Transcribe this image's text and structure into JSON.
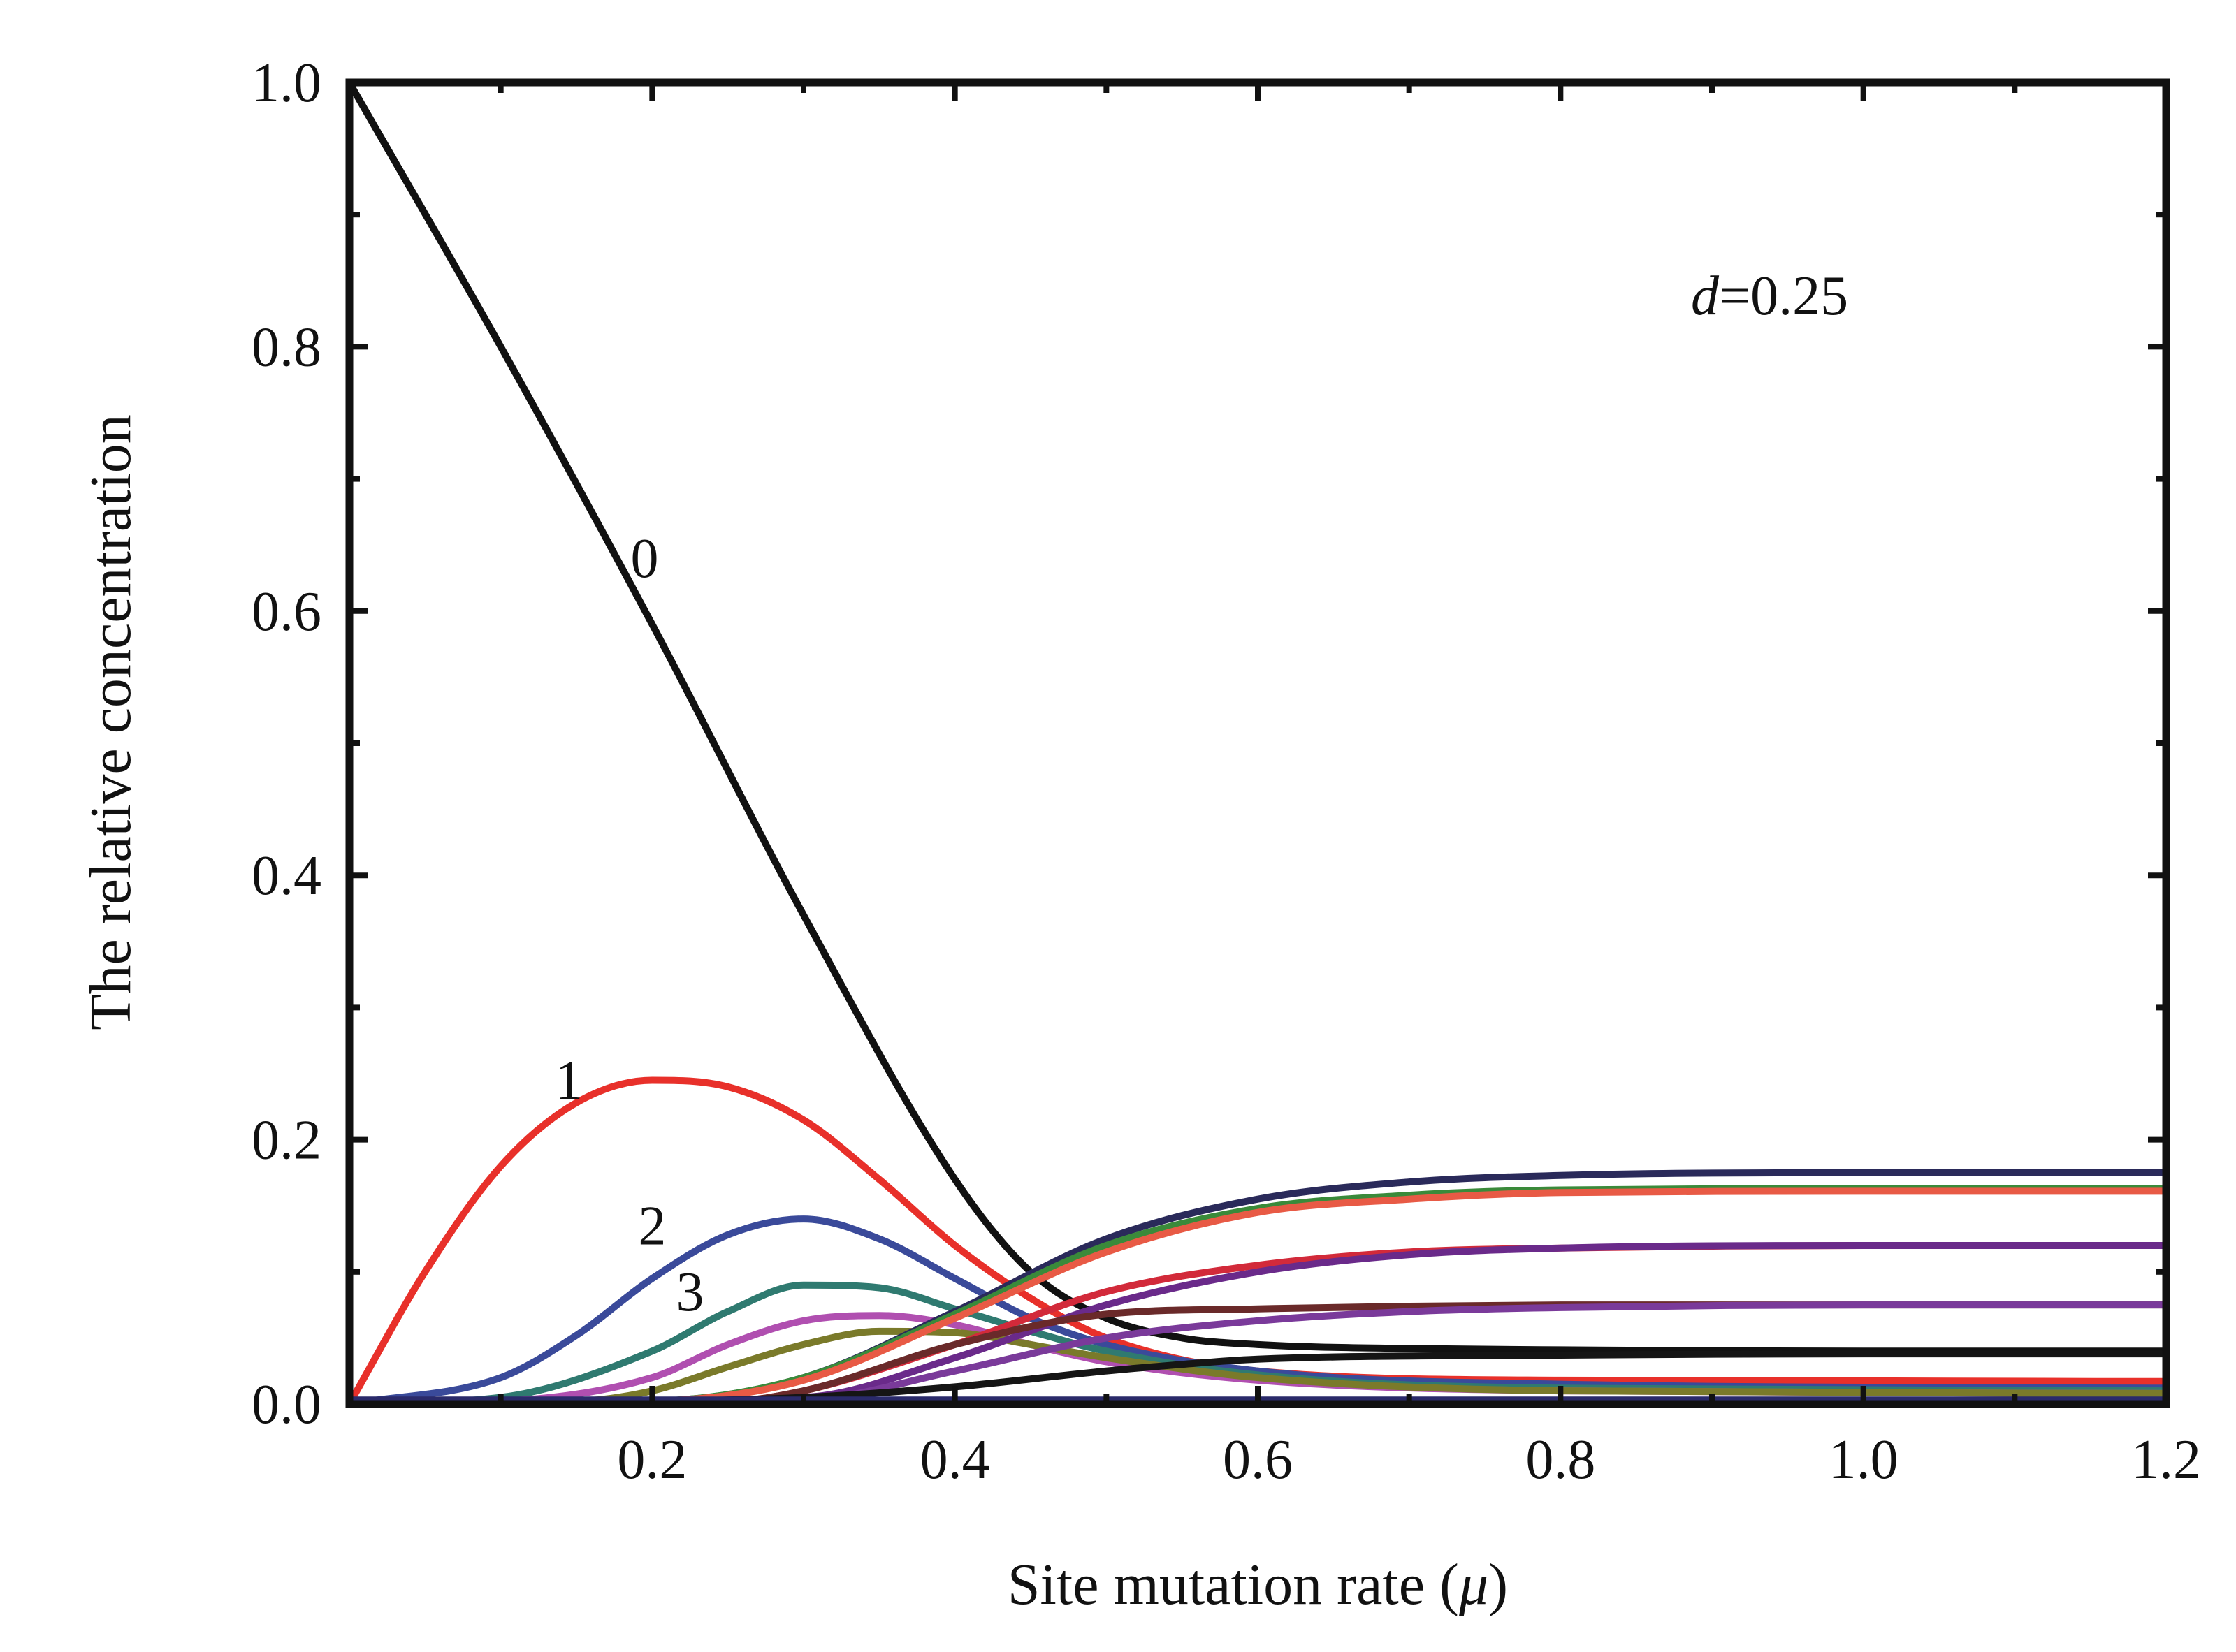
{
  "chart_data": {
    "type": "line",
    "title": "",
    "xlabel": "Site mutation rate (μ)",
    "xlabel_parts": {
      "prefix": "Site mutation rate (",
      "symbol": "μ",
      "suffix": ")"
    },
    "ylabel": "The relative concentration",
    "xlim": [
      0,
      1.2
    ],
    "ylim": [
      0,
      1.0
    ],
    "xticks": [
      "0.2",
      "0.4",
      "0.6",
      "0.8",
      "1.0",
      "1.2"
    ],
    "yticks": [
      "0.0",
      "0.2",
      "0.4",
      "0.6",
      "0.8",
      "1.0"
    ],
    "grid": false,
    "legend": "none",
    "annotation": {
      "symbol": "d",
      "text": "=0.25"
    },
    "curve_labels": [
      {
        "text": "0",
        "x": 0.195,
        "y": 0.64
      },
      {
        "text": "1",
        "x": 0.145,
        "y": 0.245
      },
      {
        "text": "2",
        "x": 0.2,
        "y": 0.135
      },
      {
        "text": "3",
        "x": 0.225,
        "y": 0.085
      }
    ],
    "series": [
      {
        "color": "#111111",
        "x": [
          0,
          0.1,
          0.2,
          0.3,
          0.4,
          0.45,
          0.5,
          0.55,
          0.6,
          0.7,
          0.8,
          1.0,
          1.2
        ],
        "values": [
          1.0,
          0.8,
          0.59,
          0.37,
          0.17,
          0.1,
          0.065,
          0.05,
          0.045,
          0.042,
          0.041,
          0.04,
          0.04
        ]
      },
      {
        "color": "#e8302a",
        "x": [
          0,
          0.05,
          0.1,
          0.15,
          0.2,
          0.25,
          0.3,
          0.35,
          0.4,
          0.45,
          0.5,
          0.6,
          0.8,
          1.2
        ],
        "values": [
          0,
          0.1,
          0.18,
          0.228,
          0.245,
          0.24,
          0.215,
          0.17,
          0.12,
          0.08,
          0.05,
          0.025,
          0.018,
          0.017
        ]
      },
      {
        "color": "#3a4a9a",
        "x": [
          0,
          0.1,
          0.15,
          0.2,
          0.25,
          0.3,
          0.35,
          0.4,
          0.45,
          0.5,
          0.6,
          0.8,
          1.2
        ],
        "values": [
          0,
          0.02,
          0.052,
          0.095,
          0.128,
          0.14,
          0.125,
          0.095,
          0.065,
          0.045,
          0.025,
          0.015,
          0.012
        ]
      },
      {
        "color": "#2f7a70",
        "x": [
          0,
          0.1,
          0.2,
          0.25,
          0.3,
          0.35,
          0.4,
          0.45,
          0.5,
          0.6,
          0.8,
          1.2
        ],
        "values": [
          0,
          0.005,
          0.04,
          0.07,
          0.09,
          0.088,
          0.072,
          0.055,
          0.04,
          0.022,
          0.012,
          0.01
        ]
      },
      {
        "color": "#b04fb0",
        "x": [
          0,
          0.1,
          0.2,
          0.25,
          0.3,
          0.35,
          0.4,
          0.45,
          0.5,
          0.6,
          0.8,
          1.2
        ],
        "values": [
          0,
          0.002,
          0.02,
          0.045,
          0.063,
          0.067,
          0.06,
          0.045,
          0.032,
          0.018,
          0.01,
          0.008
        ]
      },
      {
        "color": "#7a7a2a",
        "x": [
          0,
          0.15,
          0.2,
          0.25,
          0.3,
          0.35,
          0.4,
          0.45,
          0.5,
          0.6,
          0.8,
          1.2
        ],
        "values": [
          0,
          0.002,
          0.01,
          0.028,
          0.045,
          0.055,
          0.054,
          0.045,
          0.035,
          0.02,
          0.01,
          0.008
        ]
      },
      {
        "color": "#2a2a5a",
        "x": [
          0,
          0.2,
          0.3,
          0.4,
          0.5,
          0.6,
          0.7,
          0.8,
          1.0,
          1.2
        ],
        "values": [
          0,
          0.002,
          0.02,
          0.07,
          0.125,
          0.155,
          0.168,
          0.173,
          0.175,
          0.175
        ]
      },
      {
        "color": "#3a8a3a",
        "x": [
          0,
          0.2,
          0.3,
          0.4,
          0.5,
          0.6,
          0.7,
          0.8,
          1.0,
          1.2
        ],
        "values": [
          0,
          0.002,
          0.02,
          0.068,
          0.12,
          0.148,
          0.158,
          0.162,
          0.163,
          0.163
        ]
      },
      {
        "color": "#e85a45",
        "x": [
          0,
          0.2,
          0.3,
          0.4,
          0.5,
          0.6,
          0.7,
          0.8,
          1.0,
          1.2
        ],
        "values": [
          0,
          0.002,
          0.018,
          0.065,
          0.115,
          0.145,
          0.155,
          0.16,
          0.161,
          0.161
        ]
      },
      {
        "color": "#d22a3a",
        "x": [
          0,
          0.25,
          0.3,
          0.4,
          0.5,
          0.6,
          0.7,
          0.8,
          1.0,
          1.2
        ],
        "values": [
          0,
          0.002,
          0.01,
          0.045,
          0.085,
          0.105,
          0.115,
          0.118,
          0.12,
          0.12
        ]
      },
      {
        "color": "#6a2a8a",
        "x": [
          0,
          0.3,
          0.4,
          0.5,
          0.6,
          0.7,
          0.8,
          1.0,
          1.2
        ],
        "values": [
          0,
          0.005,
          0.035,
          0.075,
          0.1,
          0.113,
          0.118,
          0.12,
          0.12
        ]
      },
      {
        "color": "#6a2a2a",
        "x": [
          0,
          0.25,
          0.3,
          0.4,
          0.5,
          0.6,
          0.7,
          0.8,
          1.0,
          1.2
        ],
        "values": [
          0,
          0.002,
          0.01,
          0.045,
          0.068,
          0.072,
          0.074,
          0.075,
          0.075,
          0.075
        ]
      },
      {
        "color": "#7a3a9a",
        "x": [
          0,
          0.3,
          0.4,
          0.5,
          0.6,
          0.7,
          0.8,
          1.0,
          1.2
        ],
        "values": [
          0,
          0.003,
          0.025,
          0.05,
          0.063,
          0.07,
          0.073,
          0.075,
          0.075
        ]
      },
      {
        "color": "#151515",
        "x": [
          0,
          0.2,
          0.3,
          0.4,
          0.5,
          0.55,
          0.6,
          0.8,
          1.0,
          1.2
        ],
        "values": [
          0,
          0.002,
          0.005,
          0.013,
          0.025,
          0.03,
          0.034,
          0.037,
          0.038,
          0.038
        ]
      },
      {
        "color": "#2a2a6a",
        "x": [
          0,
          0.6,
          1.2
        ],
        "values": [
          0.003,
          0.003,
          0.003
        ]
      }
    ]
  }
}
